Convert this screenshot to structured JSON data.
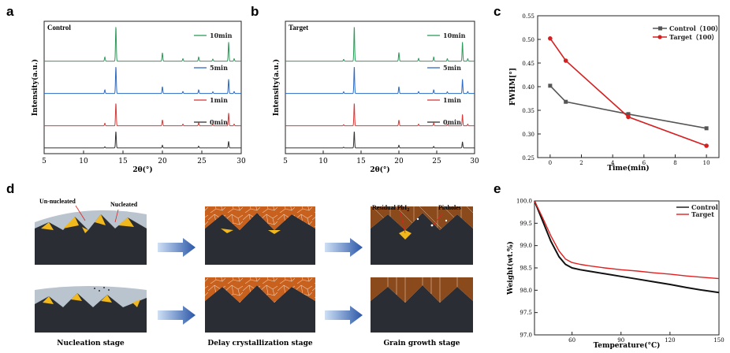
{
  "panels": {
    "a": {
      "letter": "a",
      "title": "Control",
      "ylabel": "Intensity(a.u.)",
      "xlabel": "2θ(°)",
      "ticks": [
        "5",
        "10",
        "15",
        "20",
        "25",
        "30"
      ],
      "curves": [
        {
          "label": "10min",
          "color": "#2e9b5a"
        },
        {
          "label": "5min",
          "color": "#2d6bc4"
        },
        {
          "label": "1min",
          "color": "#d93a3a"
        },
        {
          "label": "0min",
          "color": "#333333"
        }
      ]
    },
    "b": {
      "letter": "b",
      "title": "Target",
      "ylabel": "Intensity(a.u.)",
      "xlabel": "2θ(°)",
      "ticks": [
        "5",
        "10",
        "15",
        "20",
        "25",
        "30"
      ],
      "curves": [
        {
          "label": "10min",
          "color": "#2e9b5a"
        },
        {
          "label": "5min",
          "color": "#2d6bc4"
        },
        {
          "label": "1min",
          "color": "#d93a3a"
        },
        {
          "label": "0min",
          "color": "#333333"
        }
      ]
    },
    "c": {
      "letter": "c",
      "ylabel": "FWHM[°]",
      "xlabel": "Time(min)",
      "yticks": [
        "0.25",
        "0.30",
        "0.35",
        "0.40",
        "0.45",
        "0.50",
        "0.55"
      ],
      "xticks": [
        "0",
        "2",
        "4",
        "6",
        "8",
        "10"
      ]
    },
    "d": {
      "letter": "d",
      "labels": {
        "un_nucleated": "Un-nucleated",
        "nucleated": "Nucleated",
        "residual": "Residual PbI",
        "residual_sub": "2",
        "pinholes": "Pinholes"
      },
      "stages": [
        "Nucleation stage",
        "Delay crystallization stage",
        "Grain growth stage"
      ]
    },
    "e": {
      "letter": "e",
      "ylabel": "Weight(wt.%)",
      "xlabel": "Temperature(°C)",
      "yticks": [
        "97.0",
        "97.5",
        "98.0",
        "98.5",
        "99.0",
        "99.5",
        "100.0"
      ],
      "xticks": [
        "60",
        "90",
        "120",
        "150"
      ]
    }
  },
  "chart_data": [
    {
      "type": "line",
      "panel": "a",
      "title": "Control",
      "xlabel": "2θ(°)",
      "ylabel": "Intensity(a.u.)",
      "xlim": [
        5,
        30
      ],
      "series": [
        {
          "name": "10min",
          "color": "#2e9b5a",
          "peaks": [
            [
              12.7,
              0.12
            ],
            [
              14.1,
              1.0
            ],
            [
              20.0,
              0.24
            ],
            [
              22.6,
              0.07
            ],
            [
              24.6,
              0.12
            ],
            [
              26.4,
              0.06
            ],
            [
              28.4,
              0.55
            ],
            [
              29.1,
              0.07
            ]
          ]
        },
        {
          "name": "5min",
          "color": "#2d6bc4",
          "peaks": [
            [
              12.7,
              0.13
            ],
            [
              14.1,
              0.95
            ],
            [
              20.0,
              0.24
            ],
            [
              22.6,
              0.07
            ],
            [
              24.6,
              0.13
            ],
            [
              26.4,
              0.06
            ],
            [
              28.4,
              0.5
            ],
            [
              29.1,
              0.07
            ]
          ]
        },
        {
          "name": "1min",
          "color": "#d93a3a",
          "peaks": [
            [
              12.7,
              0.09
            ],
            [
              14.1,
              0.8
            ],
            [
              20.0,
              0.21
            ],
            [
              22.6,
              0.06
            ],
            [
              24.6,
              0.11
            ],
            [
              26.4,
              0.05
            ],
            [
              28.4,
              0.45
            ],
            [
              29.1,
              0.06
            ]
          ]
        },
        {
          "name": "0min",
          "color": "#333333",
          "peaks": [
            [
              12.7,
              0.05
            ],
            [
              14.1,
              0.75
            ],
            [
              20.0,
              0.12
            ],
            [
              24.6,
              0.08
            ],
            [
              28.4,
              0.3
            ]
          ]
        }
      ]
    },
    {
      "type": "line",
      "panel": "b",
      "title": "Target",
      "xlabel": "2θ(°)",
      "ylabel": "Intensity(a.u.)",
      "xlim": [
        5,
        30
      ],
      "series": [
        {
          "name": "10min",
          "color": "#2e9b5a",
          "peaks": [
            [
              12.7,
              0.05
            ],
            [
              14.1,
              1.0
            ],
            [
              20.0,
              0.25
            ],
            [
              22.6,
              0.08
            ],
            [
              24.6,
              0.12
            ],
            [
              26.4,
              0.07
            ],
            [
              28.4,
              0.55
            ],
            [
              29.1,
              0.07
            ]
          ]
        },
        {
          "name": "5min",
          "color": "#2d6bc4",
          "peaks": [
            [
              12.7,
              0.06
            ],
            [
              14.1,
              0.95
            ],
            [
              20.0,
              0.24
            ],
            [
              22.6,
              0.07
            ],
            [
              24.6,
              0.13
            ],
            [
              26.4,
              0.06
            ],
            [
              28.4,
              0.5
            ],
            [
              29.1,
              0.07
            ]
          ]
        },
        {
          "name": "1min",
          "color": "#d93a3a",
          "peaks": [
            [
              12.7,
              0.04
            ],
            [
              14.1,
              0.8
            ],
            [
              20.0,
              0.2
            ],
            [
              22.6,
              0.06
            ],
            [
              24.6,
              0.1
            ],
            [
              26.4,
              0.05
            ],
            [
              28.4,
              0.4
            ],
            [
              29.1,
              0.06
            ]
          ]
        },
        {
          "name": "0min",
          "color": "#333333",
          "peaks": [
            [
              12.7,
              0.03
            ],
            [
              14.1,
              0.75
            ],
            [
              20.0,
              0.12
            ],
            [
              24.6,
              0.07
            ],
            [
              28.4,
              0.28
            ]
          ]
        }
      ]
    },
    {
      "type": "line",
      "panel": "c",
      "xlabel": "Time(min)",
      "ylabel": "FWHM[°]",
      "xlim": [
        -0.8,
        10.8
      ],
      "ylim": [
        0.25,
        0.55
      ],
      "series": [
        {
          "name": "Control（100）",
          "color": "#555555",
          "marker": "square",
          "x": [
            0,
            1,
            5,
            10
          ],
          "y": [
            0.402,
            0.368,
            0.342,
            0.312
          ]
        },
        {
          "name": "Target（100）",
          "color": "#d42020",
          "marker": "circle",
          "x": [
            0,
            1,
            5,
            10
          ],
          "y": [
            0.502,
            0.455,
            0.336,
            0.275
          ]
        }
      ],
      "legend": "top-right"
    },
    {
      "type": "line",
      "panel": "e",
      "xlabel": "Temperature(°C)",
      "ylabel": "Weight(wt.%)",
      "xlim": [
        37,
        150
      ],
      "ylim": [
        97.0,
        100.0
      ],
      "series": [
        {
          "name": "Control",
          "color": "#111111",
          "x": [
            37,
            42,
            47,
            52,
            56,
            60,
            65,
            70,
            80,
            90,
            100,
            110,
            120,
            130,
            140,
            150
          ],
          "y": [
            100.0,
            99.55,
            99.1,
            98.75,
            98.58,
            98.5,
            98.46,
            98.43,
            98.37,
            98.31,
            98.25,
            98.19,
            98.13,
            98.06,
            98.0,
            97.95
          ]
        },
        {
          "name": "Target",
          "color": "#e02020",
          "x": [
            37,
            42,
            47,
            52,
            56,
            60,
            65,
            70,
            80,
            90,
            100,
            110,
            120,
            130,
            140,
            150
          ],
          "y": [
            100.0,
            99.62,
            99.22,
            98.88,
            98.7,
            98.62,
            98.58,
            98.55,
            98.5,
            98.46,
            98.43,
            98.39,
            98.36,
            98.32,
            98.29,
            98.26
          ]
        }
      ],
      "legend": "top-right"
    }
  ]
}
